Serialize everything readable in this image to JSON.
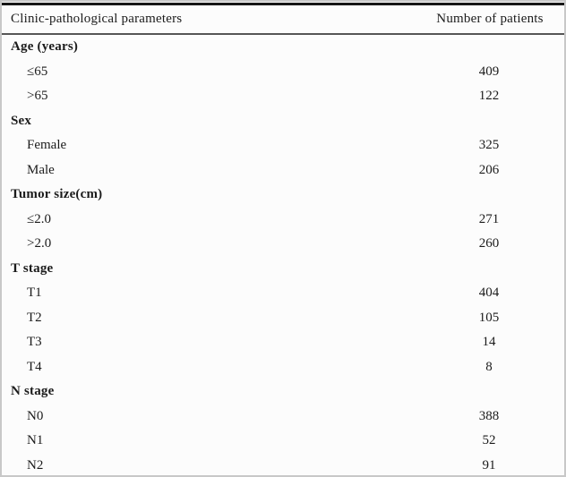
{
  "page": {
    "type": "academic-paper-table"
  },
  "table": {
    "columns": [
      "Clinic-pathological parameters",
      "Number of patients"
    ],
    "sections": [
      {
        "label": "Age (years)",
        "rows": [
          {
            "label": "≤65",
            "value": "409"
          },
          {
            "label": ">65",
            "value": "122"
          }
        ]
      },
      {
        "label": "Sex",
        "rows": [
          {
            "label": "Female",
            "value": "325"
          },
          {
            "label": "Male",
            "value": "206"
          }
        ]
      },
      {
        "label": "Tumor size(cm)",
        "rows": [
          {
            "label": "≤2.0",
            "value": "271"
          },
          {
            "label": ">2.0",
            "value": "260"
          }
        ]
      },
      {
        "label": "T stage",
        "rows": [
          {
            "label": "T1",
            "value": "404"
          },
          {
            "label": "T2",
            "value": "105"
          },
          {
            "label": "T3",
            "value": "14"
          },
          {
            "label": "T4",
            "value": "8"
          }
        ]
      },
      {
        "label": "N stage",
        "rows": [
          {
            "label": "N0",
            "value": "388"
          },
          {
            "label": "N1",
            "value": "52"
          },
          {
            "label": "N2",
            "value": "91"
          }
        ]
      }
    ]
  },
  "colors": {
    "text": "#1b1b1b",
    "top_rule": "#161616",
    "header_rule": "#565656",
    "frame_border": "#c8c8c8",
    "background": "#fcfcfc"
  }
}
